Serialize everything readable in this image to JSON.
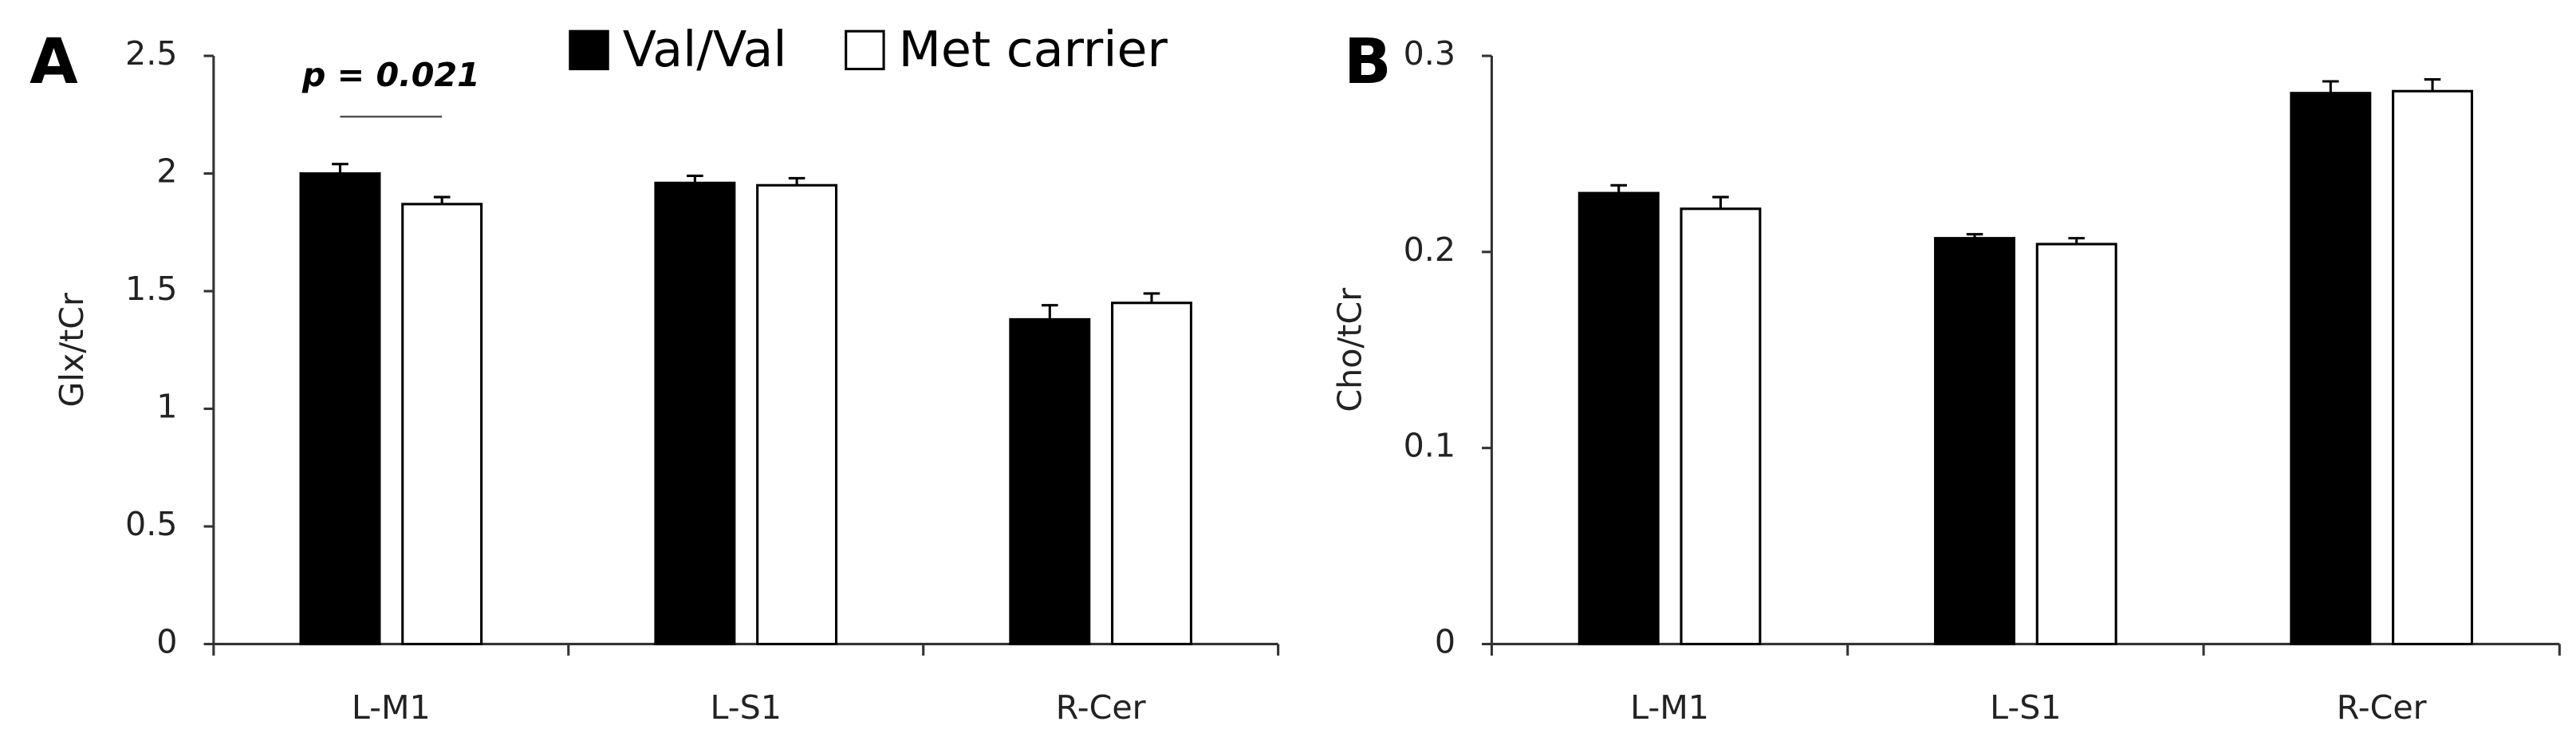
{
  "chart_data": [
    {
      "type": "bar",
      "panel": "A",
      "y_label": "Glx/tCr",
      "categories": [
        "L-M1",
        "L-S1",
        "R-Cer"
      ],
      "series": [
        {
          "name": "Val/Val",
          "color": "#000000",
          "values": [
            2.0,
            1.96,
            1.38
          ],
          "errors": [
            0.04,
            0.03,
            0.06
          ]
        },
        {
          "name": "Met carrier",
          "color": "#ffffff",
          "values": [
            1.87,
            1.95,
            1.45
          ],
          "errors": [
            0.03,
            0.03,
            0.04
          ]
        }
      ],
      "annotation": "p = 0.021",
      "ylim": [
        0,
        2.5
      ],
      "yticks": [
        0,
        0.5,
        1,
        1.5,
        2,
        2.5
      ]
    },
    {
      "type": "bar",
      "panel": "B",
      "y_label": "Cho/tCr",
      "categories": [
        "L-M1",
        "L-S1",
        "R-Cer"
      ],
      "series": [
        {
          "color": "#000000",
          "values": [
            0.23,
            0.207,
            0.281
          ],
          "errors": [
            0.004,
            0.002,
            0.006
          ]
        },
        {
          "color": "#ffffff",
          "values": [
            0.222,
            0.204,
            0.282
          ],
          "errors": [
            0.006,
            0.003,
            0.006
          ]
        }
      ],
      "ylim": [
        0,
        0.3
      ],
      "yticks": [
        0,
        0.1,
        0.2,
        0.3
      ]
    }
  ]
}
